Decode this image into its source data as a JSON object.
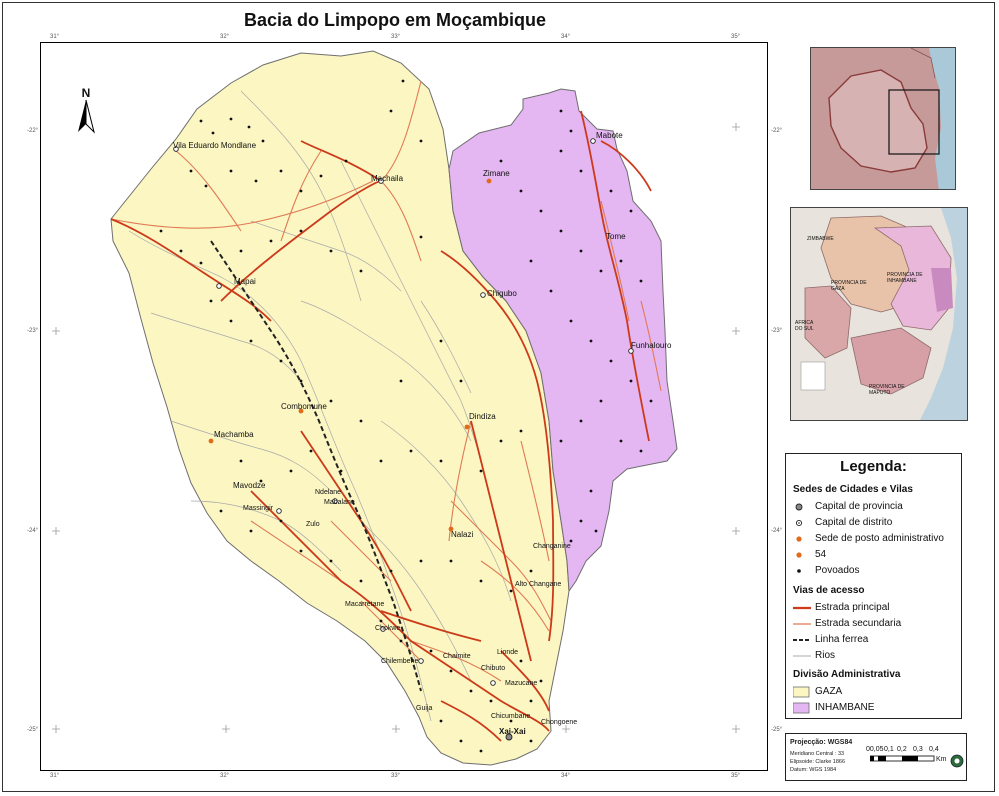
{
  "title": "Bacia do Limpopo em Moçambique",
  "north_label": "N",
  "graticule": {
    "top": [
      "31°",
      "32°",
      "33°",
      "34°",
      "35°"
    ],
    "left": [
      "-22°",
      "-23°",
      "-24°",
      "-25°"
    ]
  },
  "colors": {
    "gaza": "#fbf6c2",
    "inhambane": "#e4b6f2",
    "road_main": "#cc3a1a",
    "road_secondary": "#e07a55",
    "rivers": "#a8a8a8",
    "boundary": "#6e6e6e"
  },
  "places": {
    "major": [
      {
        "name": "Vila Eduardo Mondlane"
      },
      {
        "name": "Machaila"
      },
      {
        "name": "Mapai"
      },
      {
        "name": "Zimane"
      },
      {
        "name": "Mabote"
      },
      {
        "name": "Tome"
      },
      {
        "name": "Chigubo"
      },
      {
        "name": "Funhalouro"
      },
      {
        "name": "Combomune"
      },
      {
        "name": "Machamba"
      },
      {
        "name": "Dindiza"
      },
      {
        "name": "Mavodze"
      },
      {
        "name": "Massingir"
      },
      {
        "name": "Ndelane"
      },
      {
        "name": "Mabalane"
      },
      {
        "name": "Zulo"
      },
      {
        "name": "Nalazi"
      },
      {
        "name": "Changanine"
      },
      {
        "name": "Alto Changane"
      },
      {
        "name": "Macarretane"
      },
      {
        "name": "Lionde"
      },
      {
        "name": "Chokwe"
      },
      {
        "name": "Chaimite"
      },
      {
        "name": "Chibuto"
      },
      {
        "name": "Mazucane"
      },
      {
        "name": "Chongoene"
      },
      {
        "name": "Xai-Xai"
      },
      {
        "name": "Chicumbane"
      },
      {
        "name": "Chilembene"
      },
      {
        "name": "Guija"
      }
    ]
  },
  "legend": {
    "title": "Legenda:",
    "sections": [
      {
        "heading": "Sedes de Cidades e Vilas",
        "items": [
          {
            "label": "Capital de provincia",
            "symbol": "dot-gray-outline"
          },
          {
            "label": "Capital de distrito",
            "symbol": "dot-ring"
          },
          {
            "label": "Sede de posto administrativo",
            "symbol": "dot-orange"
          },
          {
            "label": "54",
            "symbol": "dot-orange"
          },
          {
            "label": "Povoados",
            "symbol": "dot-black"
          }
        ]
      },
      {
        "heading": "Vias de acesso",
        "items": [
          {
            "label": "Estrada principal",
            "symbol": "line-main"
          },
          {
            "label": "Estrada secundaria",
            "symbol": "line-secondary"
          },
          {
            "label": "Linha ferrea",
            "symbol": "line-rail"
          },
          {
            "label": "Rios",
            "symbol": "line-river"
          }
        ]
      },
      {
        "heading": "Divisão Administrativa",
        "items": [
          {
            "label": "GAZA",
            "symbol": "fill-gaza"
          },
          {
            "label": "INHAMBANE",
            "symbol": "fill-inhambane"
          }
        ]
      }
    ]
  },
  "projection": {
    "title": "Projecção: WGS84",
    "meridian": "Meridiano Central : 33",
    "ellipsoid": "Elipsoide: Clarke 1866",
    "datum": "Datum: WGS 1984"
  },
  "scale": {
    "ticks": [
      "00,05",
      "0,1",
      "0,2",
      "0,3",
      "0,4"
    ],
    "unit": "Km"
  },
  "inset2_labels": {
    "zimbabwe": "ZIMBABWE",
    "prov_gaza": "PROVINCIA DE GAZA",
    "prov_inhambane": "PROVINCIA DE INHAMBANE",
    "africa_sul": "AFRICA DO SUL",
    "prov_maputo": "PROVINCIA DE MAPUTO"
  }
}
